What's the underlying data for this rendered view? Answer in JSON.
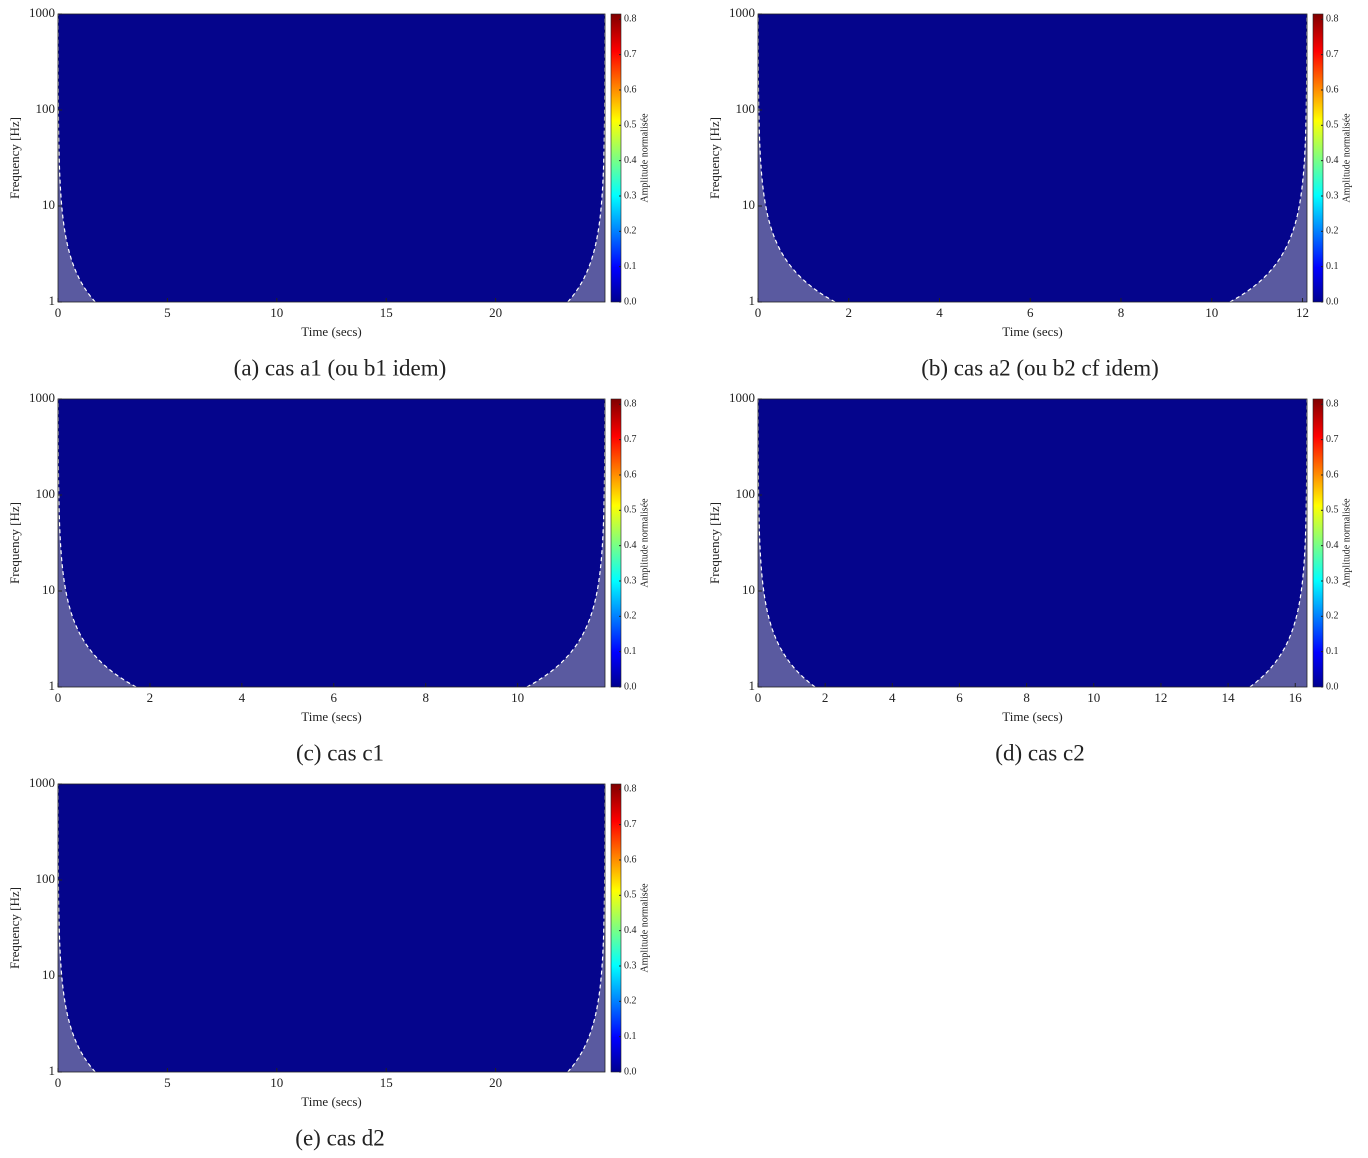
{
  "chart_data": [
    {
      "type": "heatmap",
      "caption": "(a) cas a1 (ou b1 idem)",
      "xlabel": "Time (secs)",
      "ylabel": "Frequency [Hz]",
      "colorbar_label": "Amplitude normalisée",
      "xlim": [
        0,
        25
      ],
      "xticks": [
        0,
        5,
        10,
        15,
        20
      ],
      "ylim": [
        1,
        1000
      ],
      "yticks": [
        1,
        10,
        100,
        1000
      ],
      "yscale": "log",
      "clim": [
        0,
        0.815
      ],
      "cticks": [
        {
          "value": 0,
          "label": "0.0"
        },
        0.1,
        0.2,
        0.3,
        0.4,
        0.5,
        0.6,
        0.7,
        0.8
      ]
    },
    {
      "type": "heatmap",
      "caption": "(b) cas a2 (ou b2 cf idem)",
      "xlabel": "Time (secs)",
      "ylabel": "Frequency [Hz]",
      "colorbar_label": "Amplitude normalisée",
      "xlim": [
        0,
        12.1
      ],
      "xticks": [
        0,
        2,
        4,
        6,
        8,
        10,
        12
      ],
      "ylim": [
        1,
        1000
      ],
      "yticks": [
        1,
        10,
        100,
        1000
      ],
      "yscale": "log",
      "clim": [
        0,
        0.815
      ],
      "cticks": [
        {
          "value": 0,
          "label": "0.0"
        },
        0.1,
        0.2,
        0.3,
        0.4,
        0.5,
        0.6,
        0.7,
        0.8
      ]
    },
    {
      "type": "heatmap",
      "caption": "(c) cas c1",
      "xlabel": "Time (secs)",
      "ylabel": "Frequency [Hz]",
      "colorbar_label": "Amplitude normalisée",
      "xlim": [
        0,
        11.9
      ],
      "xticks": [
        0,
        2,
        4,
        6,
        8,
        10
      ],
      "ylim": [
        1,
        1000
      ],
      "yticks": [
        1,
        10,
        100,
        1000
      ],
      "yscale": "log",
      "clim": [
        0,
        0.815
      ],
      "cticks": [
        {
          "value": 0,
          "label": "0.0"
        },
        0.1,
        0.2,
        0.3,
        0.4,
        0.5,
        0.6,
        0.7,
        0.8
      ]
    },
    {
      "type": "heatmap",
      "caption": "(d) cas c2",
      "xlabel": "Time (secs)",
      "ylabel": "Frequency [Hz]",
      "colorbar_label": "Amplitude normalisée",
      "xlim": [
        0,
        16.35
      ],
      "xticks": [
        0,
        2,
        4,
        6,
        8,
        10,
        12,
        14,
        16
      ],
      "ylim": [
        1,
        1000
      ],
      "yticks": [
        1,
        10,
        100,
        1000
      ],
      "yscale": "log",
      "clim": [
        0,
        0.815
      ],
      "cticks": [
        {
          "value": 0,
          "label": "0.0"
        },
        0.1,
        0.2,
        0.3,
        0.4,
        0.5,
        0.6,
        0.7,
        0.8
      ]
    },
    {
      "type": "heatmap",
      "caption": "(e) cas d2",
      "xlabel": "Time (secs)",
      "ylabel": "Frequency [Hz]",
      "colorbar_label": "Amplitude normalisée",
      "xlim": [
        0,
        25
      ],
      "xticks": [
        0,
        5,
        10,
        15,
        20
      ],
      "ylim": [
        1,
        1000
      ],
      "yticks": [
        1,
        10,
        100,
        1000
      ],
      "yscale": "log",
      "clim": [
        0,
        0.815
      ],
      "cticks": [
        {
          "value": 0,
          "label": "0.0"
        },
        0.1,
        0.2,
        0.3,
        0.4,
        0.5,
        0.6,
        0.7,
        0.8
      ]
    }
  ]
}
